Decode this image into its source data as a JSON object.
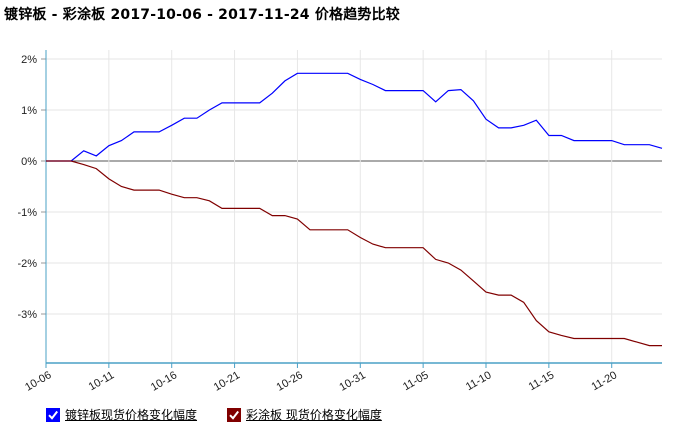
{
  "title": {
    "series_a": "镀锌板",
    "sep": " - ",
    "series_b": "彩涂板",
    "range": " 2017-10-06 - 2017-11-24 ",
    "suffix": "价格趋势比较"
  },
  "legend": [
    {
      "label": "镀锌板现货价格变化幅度",
      "color": "#0000ff"
    },
    {
      "label": "彩涂板 现货价格变化幅度",
      "color": "#800000"
    }
  ],
  "chart_data": {
    "type": "line",
    "x": [
      "10-06",
      "10-07",
      "10-08",
      "10-09",
      "10-10",
      "10-11",
      "10-12",
      "10-13",
      "10-14",
      "10-15",
      "10-16",
      "10-17",
      "10-18",
      "10-19",
      "10-20",
      "10-21",
      "10-22",
      "10-23",
      "10-24",
      "10-25",
      "10-26",
      "10-27",
      "10-28",
      "10-29",
      "10-30",
      "10-31",
      "11-01",
      "11-02",
      "11-03",
      "11-04",
      "11-05",
      "11-06",
      "11-07",
      "11-08",
      "11-09",
      "11-10",
      "11-11",
      "11-12",
      "11-13",
      "11-14",
      "11-15",
      "11-16",
      "11-17",
      "11-18",
      "11-19",
      "11-20",
      "11-21",
      "11-22",
      "11-23",
      "11-24"
    ],
    "x_ticks": [
      "10-06",
      "10-11",
      "10-16",
      "10-21",
      "10-26",
      "10-31",
      "11-05",
      "11-10",
      "11-15",
      "11-20"
    ],
    "y_ticks": [
      "2%",
      "1%",
      "0%",
      "-1%",
      "-2%",
      "-3%"
    ],
    "y_tick_values": [
      2,
      1,
      0,
      -1,
      -2,
      -3
    ],
    "ylim": [
      -4,
      2.2
    ],
    "xlabel": "",
    "ylabel": "",
    "grid": true,
    "legend_position": "bottom-left",
    "series": [
      {
        "name": "镀锌板现货价格变化幅度",
        "color": "#0000ff",
        "values": [
          0,
          0,
          0,
          0.2,
          0.1,
          0.3,
          0.4,
          0.57,
          0.57,
          0.57,
          0.7,
          0.84,
          0.84,
          1.0,
          1.14,
          1.14,
          1.14,
          1.14,
          1.33,
          1.57,
          1.72,
          1.72,
          1.72,
          1.72,
          1.72,
          1.6,
          1.5,
          1.38,
          1.38,
          1.38,
          1.38,
          1.16,
          1.38,
          1.4,
          1.18,
          0.82,
          0.65,
          0.65,
          0.7,
          0.8,
          0.5,
          0.5,
          0.4,
          0.4,
          0.4,
          0.4,
          0.32,
          0.32,
          0.32,
          0.25
        ]
      },
      {
        "name": "彩涂板 现货价格变化幅度",
        "color": "#800000",
        "values": [
          0,
          0,
          0,
          -0.07,
          -0.15,
          -0.35,
          -0.5,
          -0.57,
          -0.57,
          -0.57,
          -0.65,
          -0.72,
          -0.72,
          -0.78,
          -0.93,
          -0.93,
          -0.93,
          -0.93,
          -1.07,
          -1.07,
          -1.14,
          -1.35,
          -1.35,
          -1.35,
          -1.35,
          -1.5,
          -1.63,
          -1.7,
          -1.7,
          -1.7,
          -1.7,
          -1.93,
          -2.0,
          -2.14,
          -2.35,
          -2.57,
          -2.63,
          -2.63,
          -2.77,
          -3.13,
          -3.35,
          -3.42,
          -3.48,
          -3.48,
          -3.48,
          -3.48,
          -3.48,
          -3.55,
          -3.62,
          -3.62
        ]
      }
    ]
  }
}
